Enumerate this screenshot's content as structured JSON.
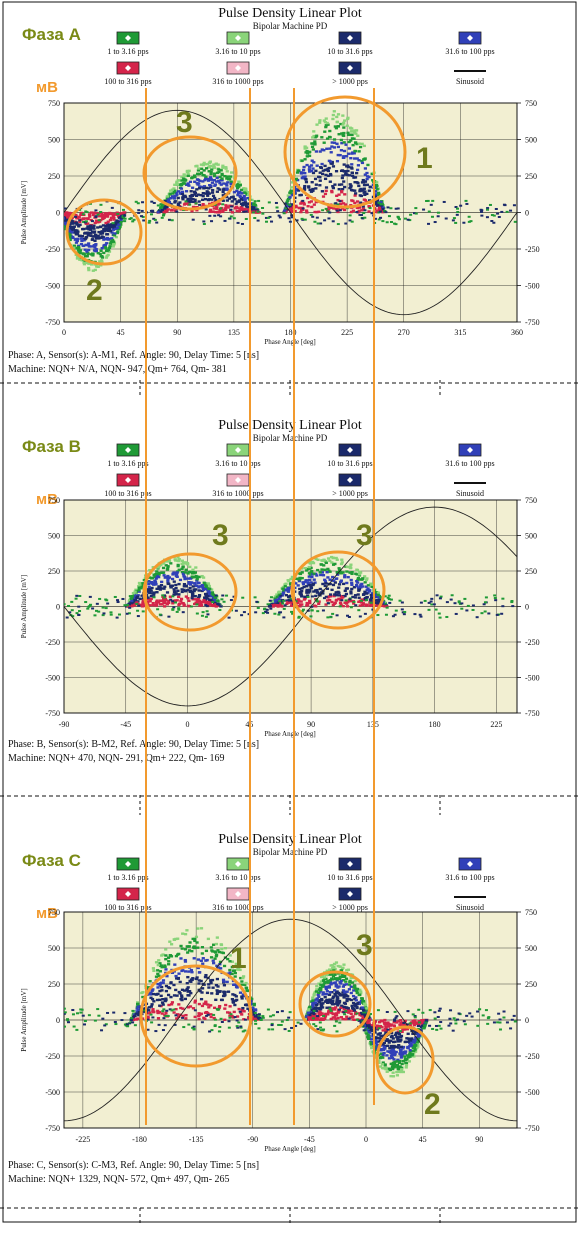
{
  "colors": {
    "plot_bg": "#f2efd2",
    "grid": "#1a1a1a",
    "green": "#1f9a36",
    "light_green": "#8ad47a",
    "navy": "#1b2a6b",
    "blue": "#3040b8",
    "red": "#d4244a",
    "pink": "#f2b6c6",
    "orange": "#f29a2e",
    "olive": "#6f7a1d",
    "label_green": "#7a8a16"
  },
  "common": {
    "title": "Pulse Density Linear Plot",
    "subtitle": "Bipolar Machine PD",
    "ylabel": "Pulse Amplitude [mV]",
    "xlabel": "Phase Angle [deg]",
    "unit_label": "мВ",
    "legend": [
      {
        "label": "1 to 3.16 pps",
        "icon": "green-diamond"
      },
      {
        "label": "3.16 to 10 pps",
        "icon": "light-green-diamond"
      },
      {
        "label": "10 to 31.6 pps",
        "icon": "navy-diamond"
      },
      {
        "label": "31.6 to 100 pps",
        "icon": "blue-diamond"
      },
      {
        "label": "100 to 316 pps",
        "icon": "red-diamond"
      },
      {
        "label": "316 to 1000 pps",
        "icon": "pink-diamond"
      },
      {
        "label": "> 1000 pps",
        "icon": "navy-diamond"
      },
      {
        "label": "Sinusoid",
        "icon": "black-line"
      }
    ],
    "y_ticks_left": [
      "750",
      "500",
      "250",
      "0",
      "-250",
      "-500",
      "-750"
    ],
    "y_ticks_right": [
      "750",
      "500",
      "250",
      "0",
      "-250",
      "-500",
      "-750"
    ]
  },
  "panels": [
    {
      "phase_label": "Фаза А",
      "x_ticks": [
        "0",
        "45",
        "90",
        "135",
        "180",
        "225",
        "270",
        "315",
        "360"
      ],
      "info_line1": "Phase: A, Sensor(s): A-M1, Ref. Angle: 90, Delay Time: 5 [ns]",
      "info_line2": "Machine: NQN+ N/A, NQN- 947, Qm+ 764, Qm- 381",
      "annotations": [
        "1",
        "2",
        "3"
      ]
    },
    {
      "phase_label": "Фаза В",
      "x_ticks": [
        "-90",
        "-45",
        "0",
        "45",
        "90",
        "135",
        "180",
        "225"
      ],
      "info_line1": "Phase: B, Sensor(s): B-M2, Ref. Angle: 90, Delay Time: 5 [ns]",
      "info_line2": "Machine: NQN+ 470, NQN- 291, Qm+ 222, Qm- 169",
      "annotations": [
        "3",
        "3"
      ]
    },
    {
      "phase_label": "Фаза С",
      "x_ticks": [
        "-225",
        "-180",
        "-135",
        "-90",
        "-45",
        "0",
        "45",
        "90"
      ],
      "info_line1": "Phase: C, Sensor(s): C-M3, Ref. Angle: 90, Delay Time: 5 [ns]",
      "info_line2": "Machine: NQN+ 1329, NQN- 572, Qm+ 497, Qm- 265",
      "annotations": [
        "1",
        "3",
        "2"
      ]
    }
  ],
  "chart_data": [
    {
      "type": "scatter",
      "title": "Pulse Density Linear Plot",
      "subtitle": "Bipolar Machine PD",
      "xlabel": "Phase Angle [deg]",
      "ylabel": "Pulse Amplitude [mV]",
      "xlim": [
        0,
        360
      ],
      "ylim": [
        -750,
        750
      ],
      "grid": true,
      "legend_position": "top",
      "sinusoid_phase_deg": 0,
      "clusters": [
        {
          "name": "1",
          "x_range": [
            180,
            250
          ],
          "y_range": [
            0,
            700
          ],
          "peak": 600
        },
        {
          "name": "2",
          "x_range": [
            0,
            45
          ],
          "y_range": [
            -400,
            -50
          ]
        },
        {
          "name": "3",
          "x_range": [
            80,
            150
          ],
          "y_range": [
            0,
            350
          ]
        }
      ]
    },
    {
      "type": "scatter",
      "title": "Pulse Density Linear Plot",
      "subtitle": "Bipolar Machine PD",
      "xlabel": "Phase Angle [deg]",
      "ylabel": "Pulse Amplitude [mV]",
      "xlim": [
        -90,
        240
      ],
      "ylim": [
        -750,
        750
      ],
      "grid": true,
      "legend_position": "top",
      "sinusoid_phase_deg": 90,
      "clusters": [
        {
          "name": "3",
          "x_range": [
            -40,
            20
          ],
          "y_range": [
            0,
            350
          ]
        },
        {
          "name": "3",
          "x_range": [
            65,
            140
          ],
          "y_range": [
            0,
            350
          ]
        }
      ]
    },
    {
      "type": "scatter",
      "title": "Pulse Density Linear Plot",
      "subtitle": "Bipolar Machine PD",
      "xlabel": "Phase Angle [deg]",
      "ylabel": "Pulse Amplitude [mV]",
      "xlim": [
        -240,
        120
      ],
      "ylim": [
        -750,
        750
      ],
      "grid": true,
      "legend_position": "top",
      "sinusoid_phase_deg": -150,
      "clusters": [
        {
          "name": "1",
          "x_range": [
            -180,
            -90
          ],
          "y_range": [
            0,
            650
          ]
        },
        {
          "name": "3",
          "x_range": [
            -45,
            0
          ],
          "y_range": [
            0,
            400
          ]
        },
        {
          "name": "2",
          "x_range": [
            0,
            45
          ],
          "y_range": [
            -400,
            -50
          ]
        }
      ]
    }
  ]
}
